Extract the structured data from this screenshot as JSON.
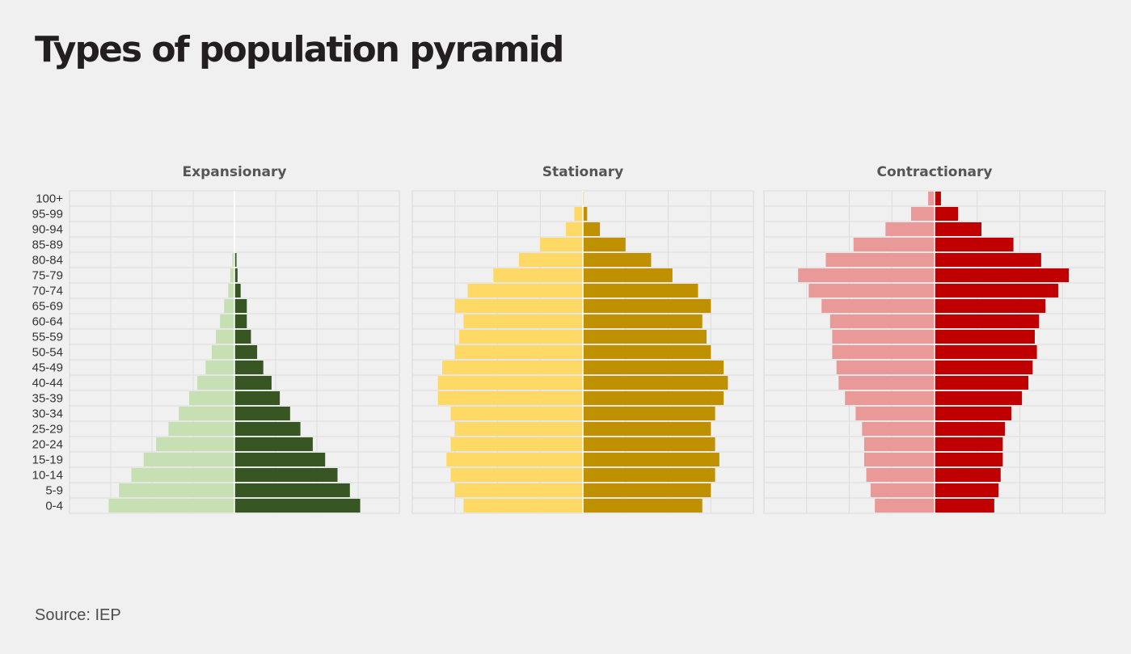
{
  "title": "Types of population pyramid",
  "source": "Source: IEP",
  "chart_data": [
    {
      "type": "bar",
      "orientation": "horizontal",
      "title": "Expansionary",
      "categories": [
        "100+",
        "95-99",
        "90-94",
        "85-89",
        "80-84",
        "75-79",
        "70-74",
        "65-69",
        "60-64",
        "55-59",
        "50-54",
        "45-49",
        "40-44",
        "35-39",
        "30-34",
        "25-29",
        "20-24",
        "15-19",
        "10-14",
        "5-9",
        "0-4"
      ],
      "series": [
        {
          "color": "#c6e0b4",
          "side": "left",
          "values": [
            0,
            0,
            0,
            0,
            0.1,
            0.2,
            0.3,
            0.5,
            0.7,
            0.9,
            1.1,
            1.4,
            1.8,
            2.2,
            2.7,
            3.2,
            3.8,
            4.4,
            5.0,
            5.6,
            6.1
          ]
        },
        {
          "color": "#375623",
          "side": "right",
          "values": [
            0,
            0,
            0,
            0,
            0.1,
            0.15,
            0.3,
            0.6,
            0.6,
            0.8,
            1.1,
            1.4,
            1.8,
            2.2,
            2.7,
            3.2,
            3.8,
            4.4,
            5.0,
            5.6,
            6.1
          ]
        }
      ],
      "xlim": [
        -8,
        8
      ],
      "grid": true
    },
    {
      "type": "bar",
      "orientation": "horizontal",
      "title": "Stationary",
      "categories": [
        "100+",
        "95-99",
        "90-94",
        "85-89",
        "80-84",
        "75-79",
        "70-74",
        "65-69",
        "60-64",
        "55-59",
        "50-54",
        "45-49",
        "40-44",
        "35-39",
        "30-34",
        "25-29",
        "20-24",
        "15-19",
        "10-14",
        "5-9",
        "0-4"
      ],
      "series": [
        {
          "color": "#ffd966",
          "side": "left",
          "values": [
            0.02,
            0.2,
            0.4,
            1.0,
            1.5,
            2.1,
            2.7,
            3.0,
            2.8,
            2.9,
            3.0,
            3.3,
            3.4,
            3.4,
            3.1,
            3.0,
            3.1,
            3.2,
            3.1,
            3.0,
            2.8
          ]
        },
        {
          "color": "#bf9000",
          "side": "right",
          "values": [
            0.02,
            0.1,
            0.4,
            1.0,
            1.6,
            2.1,
            2.7,
            3.0,
            2.8,
            2.9,
            3.0,
            3.3,
            3.4,
            3.3,
            3.1,
            3.0,
            3.1,
            3.2,
            3.1,
            3.0,
            2.8
          ]
        }
      ],
      "xlim": [
        -4,
        4
      ],
      "grid": true
    },
    {
      "type": "bar",
      "orientation": "horizontal",
      "title": "Contractionary",
      "categories": [
        "100+",
        "95-99",
        "90-94",
        "85-89",
        "80-84",
        "75-79",
        "70-74",
        "65-69",
        "60-64",
        "55-59",
        "50-54",
        "45-49",
        "40-44",
        "35-39",
        "30-34",
        "25-29",
        "20-24",
        "15-19",
        "10-14",
        "5-9",
        "0-4"
      ],
      "series": [
        {
          "color": "#ea9999",
          "side": "left",
          "values": [
            0.15,
            0.55,
            1.15,
            1.9,
            2.55,
            3.2,
            2.95,
            2.65,
            2.45,
            2.4,
            2.4,
            2.3,
            2.25,
            2.1,
            1.85,
            1.7,
            1.65,
            1.65,
            1.6,
            1.5,
            1.4
          ]
        },
        {
          "color": "#c00000",
          "side": "right",
          "values": [
            0.15,
            0.55,
            1.1,
            1.85,
            2.5,
            3.15,
            2.9,
            2.6,
            2.45,
            2.35,
            2.4,
            2.3,
            2.2,
            2.05,
            1.8,
            1.65,
            1.6,
            1.6,
            1.55,
            1.5,
            1.4
          ]
        }
      ],
      "xlim": [
        -4,
        4
      ],
      "grid": true
    }
  ]
}
